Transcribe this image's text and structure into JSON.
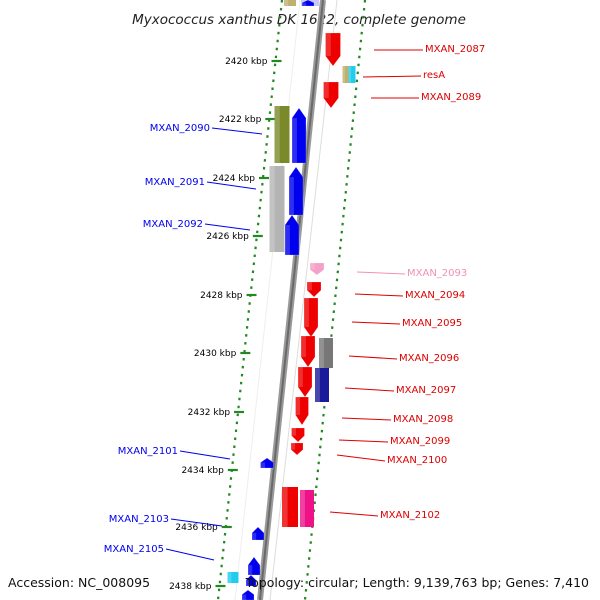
{
  "title": "Myxococcus xanthus DK 1622, complete genome",
  "footer": {
    "accession": "Accession: NC_008095",
    "topology": "Topology: circular; Length: 9,139,763 bp; Genes: 7,410"
  },
  "kbp_labels": [
    "2420 kbp",
    "2422 kbp",
    "2424 kbp",
    "2426 kbp",
    "2428 kbp",
    "2430 kbp",
    "2432 kbp",
    "2434 kbp",
    "2436 kbp",
    "2438 kbp"
  ],
  "genes_left": [
    {
      "name": "MXAN_2090",
      "color": "#0000ee"
    },
    {
      "name": "MXAN_2091",
      "color": "#0000ee"
    },
    {
      "name": "MXAN_2092",
      "color": "#0000ee"
    },
    {
      "name": "MXAN_2101",
      "color": "#0000ee"
    },
    {
      "name": "MXAN_2103",
      "color": "#0000ee"
    },
    {
      "name": "MXAN_2105",
      "color": "#0000ee"
    }
  ],
  "genes_right": [
    {
      "name": "MXAN_2087",
      "color": "#dd0000"
    },
    {
      "name": "resA",
      "color": "#dd0000"
    },
    {
      "name": "MXAN_2089",
      "color": "#dd0000"
    },
    {
      "name": "MXAN_2093",
      "color": "#f090b8"
    },
    {
      "name": "MXAN_2094",
      "color": "#dd0000"
    },
    {
      "name": "MXAN_2095",
      "color": "#dd0000"
    },
    {
      "name": "MXAN_2096",
      "color": "#dd0000"
    },
    {
      "name": "MXAN_2097",
      "color": "#dd0000"
    },
    {
      "name": "MXAN_2098",
      "color": "#dd0000"
    },
    {
      "name": "MXAN_2099",
      "color": "#dd0000"
    },
    {
      "name": "MXAN_2100",
      "color": "#dd0000"
    },
    {
      "name": "MXAN_2102",
      "color": "#dd0000"
    }
  ],
  "colors": {
    "forward": "#ee0000",
    "reverse": "#0000ee",
    "pseudo": "#f4a0c8",
    "magenta": "#ee1188",
    "olive": "#7a8a2a",
    "grey": "#b4b4b4",
    "darkgrey": "#777777",
    "cyan": "#22ccee",
    "tan": "#c0b070",
    "dots": "#228822",
    "axis": "#888888"
  }
}
